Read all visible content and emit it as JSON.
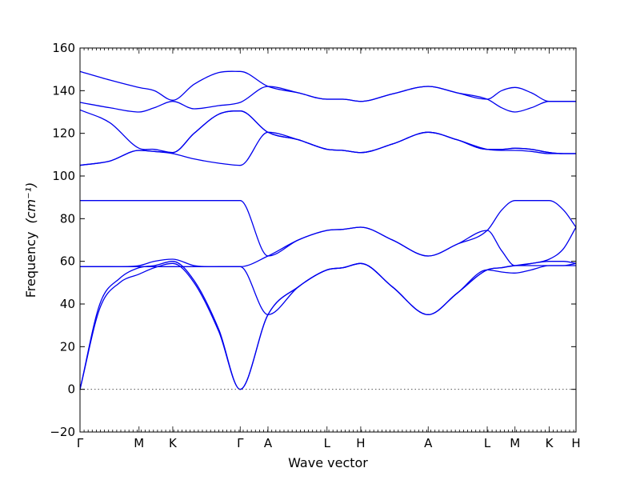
{
  "chart_data": {
    "type": "line",
    "title": "",
    "xlabel": "Wave vector",
    "ylabel": "Frequency",
    "ylabel_unit": "(cm⁻¹)",
    "ylim": [
      -20,
      160
    ],
    "yticks": [
      -20,
      0,
      20,
      40,
      60,
      80,
      100,
      120,
      140,
      160
    ],
    "xlim": [
      0,
      1
    ],
    "kpoints": [
      {
        "label": "Γ",
        "x": 0.0
      },
      {
        "label": "M",
        "x": 0.119
      },
      {
        "label": "K",
        "x": 0.187
      },
      {
        "label": "Γ",
        "x": 0.323
      },
      {
        "label": "A",
        "x": 0.379
      },
      {
        "label": "L",
        "x": 0.498
      },
      {
        "label": "H",
        "x": 0.566
      },
      {
        "label": "A",
        "x": 0.702
      },
      {
        "label": "L",
        "x": 0.821
      },
      {
        "label": "M",
        "x": 0.877
      },
      {
        "label": "K",
        "x": 0.946
      },
      {
        "label": "H",
        "x": 1.0
      }
    ],
    "zero_line": 0,
    "series": [
      {
        "x": [
          0,
          0.04,
          0.08,
          0.119,
          0.15,
          0.187,
          0.23,
          0.28,
          0.323,
          0.379,
          0.44,
          0.498,
          0.53,
          0.566,
          0.63,
          0.702,
          0.76,
          0.821,
          0.85,
          0.877,
          0.91,
          0.946,
          0.975,
          1
        ],
        "y": [
          0,
          38,
          50,
          54,
          57,
          59,
          50,
          27,
          0,
          35,
          48,
          56,
          57,
          59,
          48,
          35,
          45,
          56,
          55,
          54.5,
          56,
          58,
          58,
          58
        ]
      },
      {
        "x": [
          0,
          0.04,
          0.08,
          0.119,
          0.15,
          0.187,
          0.23,
          0.28,
          0.323,
          0.379,
          0.44,
          0.498,
          0.53,
          0.566,
          0.63,
          0.702,
          0.76,
          0.821,
          0.85,
          0.877,
          0.91,
          0.946,
          0.975,
          1
        ],
        "y": [
          0,
          40,
          52,
          57,
          58,
          60,
          51,
          28,
          0,
          35,
          48,
          56,
          57,
          59,
          48,
          35,
          45,
          56,
          57,
          58,
          58,
          58,
          58,
          59
        ]
      },
      {
        "x": [
          0,
          0.119,
          0.187,
          0.323,
          0.379,
          0.44,
          0.498,
          0.53,
          0.566,
          0.63,
          0.702,
          0.76,
          0.821,
          0.85,
          0.877,
          0.91,
          0.946,
          0.975,
          1
        ],
        "y": [
          57.5,
          57.5,
          57.5,
          57.5,
          35,
          48,
          56,
          57,
          59,
          48,
          35,
          45,
          56,
          57,
          58,
          59,
          60,
          60,
          59
        ]
      },
      {
        "x": [
          0,
          0.06,
          0.119,
          0.15,
          0.187,
          0.23,
          0.28,
          0.323,
          0.379,
          0.44,
          0.498,
          0.53,
          0.566,
          0.63,
          0.702,
          0.76,
          0.821,
          0.85,
          0.877,
          0.91,
          0.946,
          0.975,
          1
        ],
        "y": [
          57.5,
          57.5,
          58,
          60,
          61,
          58,
          57.5,
          57.5,
          62.5,
          70,
          74.5,
          75,
          76,
          70,
          62.5,
          68,
          74.5,
          65,
          58,
          59,
          61,
          66,
          76
        ]
      },
      {
        "x": [
          0,
          0.119,
          0.187,
          0.28,
          0.323,
          0.379,
          0.44,
          0.498,
          0.53,
          0.566,
          0.63,
          0.702,
          0.76,
          0.821,
          0.85,
          0.877,
          0.91,
          0.946,
          0.975,
          1
        ],
        "y": [
          88.5,
          88.5,
          88.5,
          88.5,
          88.5,
          62.5,
          70,
          74.5,
          75,
          76,
          70,
          62.5,
          68,
          74.5,
          84,
          88.5,
          88.5,
          88.5,
          84,
          76
        ]
      },
      {
        "x": [
          0,
          0.06,
          0.119,
          0.15,
          0.187,
          0.23,
          0.28,
          0.323,
          0.379,
          0.44,
          0.498,
          0.53,
          0.566,
          0.63,
          0.702,
          0.76,
          0.821,
          0.85,
          0.877,
          0.91,
          0.946,
          0.975,
          1
        ],
        "y": [
          105,
          107,
          112,
          111.5,
          110.5,
          108,
          106,
          105,
          120.5,
          117,
          112.5,
          112,
          111,
          115,
          120.5,
          117,
          112.5,
          112,
          112,
          111.5,
          110.5,
          110.5,
          110.5
        ]
      },
      {
        "x": [
          0,
          0.06,
          0.119,
          0.15,
          0.187,
          0.23,
          0.28,
          0.323,
          0.379,
          0.44,
          0.498,
          0.53,
          0.566,
          0.63,
          0.702,
          0.76,
          0.821,
          0.85,
          0.877,
          0.91,
          0.946,
          0.975,
          1
        ],
        "y": [
          105,
          107,
          112,
          111.5,
          111,
          120,
          129,
          130.5,
          120.5,
          117,
          112.5,
          112,
          111,
          115,
          120.5,
          117,
          112.5,
          112.5,
          113,
          112.5,
          111,
          110.5,
          110.5
        ]
      },
      {
        "x": [
          0,
          0.06,
          0.119,
          0.15,
          0.187,
          0.23,
          0.28,
          0.323,
          0.379,
          0.44,
          0.498,
          0.53,
          0.566,
          0.63,
          0.702,
          0.76,
          0.821,
          0.85,
          0.877,
          0.91,
          0.946,
          0.975,
          1
        ],
        "y": [
          131,
          125,
          113,
          112.5,
          111,
          120,
          129,
          130.5,
          120.5,
          117,
          112.5,
          112,
          111,
          115,
          120.5,
          117,
          112.5,
          112.5,
          113,
          112.5,
          111,
          110.5,
          110.5
        ]
      },
      {
        "x": [
          0,
          0.06,
          0.119,
          0.15,
          0.187,
          0.23,
          0.28,
          0.323,
          0.379,
          0.44,
          0.498,
          0.53,
          0.566,
          0.63,
          0.702,
          0.76,
          0.821,
          0.85,
          0.877,
          0.91,
          0.946,
          0.975,
          1
        ],
        "y": [
          134.5,
          132,
          130,
          132,
          135,
          131.5,
          133,
          134.5,
          142,
          139,
          136,
          136,
          135,
          138.5,
          142,
          139,
          136,
          132,
          130,
          132,
          135,
          135,
          135
        ]
      },
      {
        "x": [
          0,
          0.06,
          0.119,
          0.15,
          0.187,
          0.23,
          0.28,
          0.323,
          0.379,
          0.44,
          0.498,
          0.53,
          0.566,
          0.63,
          0.702,
          0.76,
          0.821,
          0.85,
          0.877,
          0.91,
          0.946,
          0.975,
          1
        ],
        "y": [
          149,
          145,
          141.5,
          140,
          135.5,
          143,
          148.5,
          149,
          142,
          139,
          136,
          136,
          135,
          138.5,
          142,
          139,
          136,
          140,
          141.5,
          139,
          135,
          135,
          135
        ]
      }
    ]
  }
}
